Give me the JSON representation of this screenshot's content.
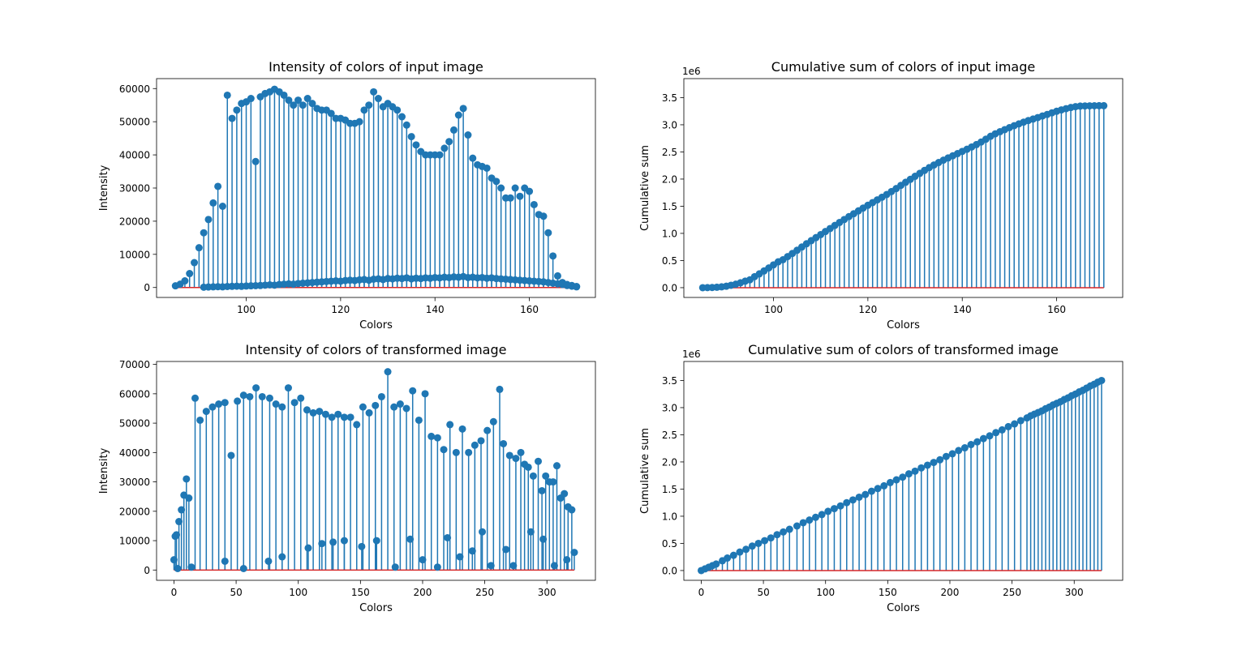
{
  "chart_data": [
    {
      "type": "stem",
      "title": "Intensity of colors of input image",
      "xlabel": "Colors",
      "ylabel": "Intensity",
      "xlim": [
        81,
        174
      ],
      "ylim": [
        -3000,
        63000
      ],
      "xticks": [
        100,
        120,
        140,
        160
      ],
      "yticks": [
        0,
        10000,
        20000,
        30000,
        40000,
        50000,
        60000
      ],
      "colors": {
        "stem": "#1f77b4",
        "baseline": "#d62728"
      },
      "series": [
        {
          "x": [
            85,
            86,
            87,
            88,
            89,
            90,
            91,
            92,
            93,
            94,
            95,
            96,
            97,
            98,
            99,
            100,
            101,
            102,
            103,
            104,
            105,
            106,
            107,
            108,
            109,
            110,
            111,
            112,
            113,
            114,
            115,
            116,
            117,
            118,
            119,
            120,
            121,
            122,
            123,
            124,
            125,
            126,
            127,
            128,
            129,
            130,
            131,
            132,
            133,
            134,
            135,
            136,
            137,
            138,
            139,
            140,
            141,
            142,
            143,
            144,
            145,
            146,
            147,
            148,
            149,
            150,
            151,
            152,
            153,
            154,
            155,
            156,
            157,
            158,
            159,
            160,
            161,
            162,
            163,
            164,
            165,
            166,
            167,
            168,
            169,
            170
          ],
          "y": [
            500,
            1000,
            2000,
            4200,
            7500,
            12000,
            16500,
            20500,
            25500,
            30500,
            24500,
            58000,
            51000,
            53500,
            55500,
            56000,
            57000,
            38000,
            57500,
            58500,
            59000,
            59800,
            59000,
            58000,
            56500,
            55000,
            56500,
            55000,
            57000,
            55500,
            54000,
            53500,
            53500,
            52500,
            51000,
            51000,
            50500,
            49500,
            49500,
            50000,
            53500,
            55000,
            59000,
            57000,
            54500,
            55500,
            54500,
            53500,
            51500,
            49000,
            45500,
            43000,
            41000,
            40000,
            40000,
            40000,
            40000,
            42000,
            44000,
            47500,
            52000,
            54000,
            46000,
            39000,
            37000,
            36500,
            36000,
            33000,
            32000,
            30000,
            27000,
            27000,
            30000,
            27500,
            30000,
            29000,
            25000,
            22000,
            21500,
            16500,
            9500,
            3500,
            1500,
            900,
            600,
            300
          ]
        },
        {
          "x": [
            91,
            92,
            93,
            94,
            95,
            96,
            97,
            98,
            99,
            100,
            101,
            102,
            103,
            104,
            105,
            106,
            107,
            108,
            109,
            110,
            111,
            112,
            113,
            114,
            115,
            116,
            117,
            118,
            119,
            120,
            121,
            122,
            123,
            124,
            125,
            126,
            127,
            128,
            129,
            130,
            131,
            132,
            133,
            134,
            135,
            136,
            137,
            138,
            139,
            140,
            141,
            142,
            143,
            144,
            145,
            146,
            147,
            148,
            149,
            150,
            151,
            152,
            153,
            154,
            155,
            156,
            157,
            158,
            159,
            160,
            161,
            162,
            163,
            164,
            165,
            166,
            167,
            168,
            169,
            170
          ],
          "y": [
            100,
            150,
            200,
            250,
            200,
            300,
            350,
            400,
            350,
            450,
            500,
            550,
            600,
            700,
            800,
            700,
            900,
            1000,
            1100,
            1000,
            1200,
            1300,
            1400,
            1500,
            1600,
            1700,
            1800,
            1900,
            2000,
            1900,
            2100,
            2200,
            2100,
            2300,
            2400,
            2200,
            2500,
            2600,
            2400,
            2700,
            2600,
            2800,
            2700,
            2900,
            2600,
            2800,
            2700,
            2900,
            2800,
            3000,
            2900,
            3100,
            3000,
            3200,
            3100,
            3300,
            3000,
            3100,
            2900,
            3000,
            2800,
            2900,
            2700,
            2600,
            2500,
            2400,
            2300,
            2200,
            2100,
            2000,
            1900,
            1800,
            1700,
            1500,
            1300,
            1100,
            900,
            600,
            400,
            200
          ]
        }
      ]
    },
    {
      "type": "stem",
      "title": "Cumulative sum of colors of input image",
      "xlabel": "Colors",
      "ylabel": "Cumulative sum",
      "offset_text": "1e6",
      "xlim": [
        81,
        174
      ],
      "ylim": [
        -0.18,
        3.85
      ],
      "xticks": [
        100,
        120,
        140,
        160
      ],
      "yticks": [
        0.0,
        0.5,
        1.0,
        1.5,
        2.0,
        2.5,
        3.0,
        3.5
      ],
      "colors": {
        "stem": "#1f77b4",
        "baseline": "#d62728"
      },
      "series": [
        {
          "x": [
            85,
            86,
            87,
            88,
            89,
            90,
            91,
            92,
            93,
            94,
            95,
            96,
            97,
            98,
            99,
            100,
            101,
            102,
            103,
            104,
            105,
            106,
            107,
            108,
            109,
            110,
            111,
            112,
            113,
            114,
            115,
            116,
            117,
            118,
            119,
            120,
            121,
            122,
            123,
            124,
            125,
            126,
            127,
            128,
            129,
            130,
            131,
            132,
            133,
            134,
            135,
            136,
            137,
            138,
            139,
            140,
            141,
            142,
            143,
            144,
            145,
            146,
            147,
            148,
            149,
            150,
            151,
            152,
            153,
            154,
            155,
            156,
            157,
            158,
            159,
            160,
            161,
            162,
            163,
            164,
            165,
            166,
            167,
            168,
            169,
            170
          ],
          "y": [
            0.0,
            0.001,
            0.003,
            0.008,
            0.015,
            0.027,
            0.044,
            0.064,
            0.09,
            0.12,
            0.145,
            0.203,
            0.254,
            0.308,
            0.363,
            0.419,
            0.476,
            0.514,
            0.572,
            0.63,
            0.689,
            0.749,
            0.808,
            0.866,
            0.922,
            0.977,
            1.034,
            1.089,
            1.146,
            1.201,
            1.255,
            1.309,
            1.362,
            1.415,
            1.466,
            1.517,
            1.567,
            1.617,
            1.666,
            1.716,
            1.77,
            1.825,
            1.884,
            1.941,
            1.995,
            2.051,
            2.105,
            2.159,
            2.21,
            2.259,
            2.305,
            2.348,
            2.389,
            2.429,
            2.469,
            2.509,
            2.549,
            2.591,
            2.635,
            2.682,
            2.734,
            2.788,
            2.834,
            2.873,
            2.91,
            2.947,
            2.983,
            3.016,
            3.048,
            3.078,
            3.105,
            3.132,
            3.162,
            3.19,
            3.22,
            3.249,
            3.274,
            3.296,
            3.318,
            3.334,
            3.344,
            3.347,
            3.349,
            3.35,
            3.351,
            3.351
          ]
        }
      ]
    },
    {
      "type": "stem",
      "title": "Intensity of colors of transformed image",
      "xlabel": "Colors",
      "ylabel": "Intensity",
      "xlim": [
        -14,
        339
      ],
      "ylim": [
        -3500,
        71000
      ],
      "xticks": [
        0,
        50,
        100,
        150,
        200,
        250,
        300
      ],
      "yticks": [
        0,
        10000,
        20000,
        30000,
        40000,
        50000,
        60000,
        70000
      ],
      "colors": {
        "stem": "#1f77b4",
        "baseline": "#d62728"
      },
      "series": [
        {
          "x": [
            0,
            1,
            2,
            4,
            6,
            8,
            10,
            12,
            17,
            21,
            26,
            31,
            36,
            41,
            46,
            51,
            56,
            61,
            66,
            71,
            77,
            82,
            87,
            92,
            97,
            102,
            107,
            112,
            117,
            122,
            127,
            132,
            137,
            142,
            147,
            152,
            157,
            162,
            167,
            172,
            177,
            182,
            187,
            192,
            197,
            202,
            207,
            212,
            217,
            222,
            227,
            232,
            237,
            242,
            247,
            252,
            257,
            262,
            265,
            270,
            275,
            279,
            282,
            285,
            289,
            293,
            296,
            299,
            302,
            305,
            308,
            311,
            314,
            317,
            320
          ],
          "y": [
            3500,
            11500,
            12000,
            16500,
            20500,
            25500,
            31000,
            24500,
            58500,
            51000,
            54000,
            55500,
            56500,
            57000,
            39000,
            57500,
            59500,
            59000,
            62000,
            59000,
            58500,
            56500,
            55500,
            62000,
            57000,
            58500,
            54500,
            53500,
            54000,
            53000,
            52000,
            53000,
            52000,
            52000,
            49500,
            55500,
            53500,
            56000,
            59000,
            67500,
            55500,
            56500,
            55000,
            61000,
            51000,
            60000,
            45500,
            45000,
            41000,
            49500,
            40000,
            48000,
            40000,
            42500,
            44000,
            47500,
            50500,
            61500,
            43000,
            39000,
            38000,
            40000,
            36000,
            35000,
            32000,
            37000,
            27000,
            32000,
            30000,
            30000,
            35500,
            24500,
            26000,
            21500,
            20500
          ]
        },
        {
          "x": [
            3,
            14,
            41,
            56,
            76,
            87,
            108,
            119,
            128,
            137,
            151,
            163,
            178,
            190,
            200,
            212,
            220,
            230,
            240,
            248,
            255,
            267,
            273,
            287,
            297,
            306,
            316,
            322
          ],
          "y": [
            500,
            1000,
            3000,
            500,
            3000,
            4500,
            7500,
            9000,
            9500,
            10000,
            8000,
            10000,
            1000,
            10500,
            3500,
            1000,
            11000,
            4500,
            6500,
            13000,
            1500,
            7000,
            1500,
            13000,
            10500,
            1500,
            3500,
            6000
          ]
        }
      ]
    },
    {
      "type": "stem",
      "title": "Cumulative sum of colors of transformed image",
      "xlabel": "Colors",
      "ylabel": "Cumulative sum",
      "offset_text": "1e6",
      "xlim": [
        -14,
        339
      ],
      "ylim": [
        -0.18,
        3.85
      ],
      "xticks": [
        0,
        50,
        100,
        150,
        200,
        250,
        300
      ],
      "yticks": [
        0.0,
        0.5,
        1.0,
        1.5,
        2.0,
        2.5,
        3.0,
        3.5
      ],
      "colors": {
        "stem": "#1f77b4",
        "baseline": "#d62728"
      },
      "series": [
        {
          "x": [
            0,
            3,
            6,
            9,
            12,
            17,
            21,
            26,
            31,
            36,
            41,
            46,
            51,
            56,
            61,
            66,
            71,
            77,
            82,
            87,
            92,
            97,
            102,
            107,
            112,
            117,
            122,
            127,
            132,
            137,
            142,
            147,
            152,
            157,
            162,
            167,
            172,
            177,
            182,
            187,
            192,
            197,
            202,
            207,
            212,
            217,
            222,
            227,
            232,
            237,
            242,
            247,
            252,
            257,
            262,
            265,
            268,
            271,
            274,
            277,
            280,
            283,
            286,
            289,
            292,
            295,
            298,
            301,
            304,
            307,
            310,
            313,
            316,
            319,
            322
          ],
          "y": [
            0.0,
            0.03,
            0.06,
            0.09,
            0.12,
            0.18,
            0.23,
            0.28,
            0.34,
            0.39,
            0.45,
            0.5,
            0.55,
            0.6,
            0.66,
            0.71,
            0.76,
            0.82,
            0.88,
            0.93,
            0.98,
            1.03,
            1.09,
            1.14,
            1.19,
            1.25,
            1.3,
            1.35,
            1.4,
            1.46,
            1.51,
            1.56,
            1.62,
            1.67,
            1.72,
            1.78,
            1.83,
            1.89,
            1.94,
            1.99,
            2.04,
            2.1,
            2.15,
            2.21,
            2.26,
            2.32,
            2.37,
            2.43,
            2.48,
            2.54,
            2.59,
            2.65,
            2.7,
            2.76,
            2.81,
            2.85,
            2.88,
            2.91,
            2.94,
            2.98,
            3.01,
            3.05,
            3.08,
            3.11,
            3.15,
            3.18,
            3.22,
            3.25,
            3.29,
            3.32,
            3.36,
            3.4,
            3.43,
            3.47,
            3.5
          ]
        }
      ]
    }
  ]
}
